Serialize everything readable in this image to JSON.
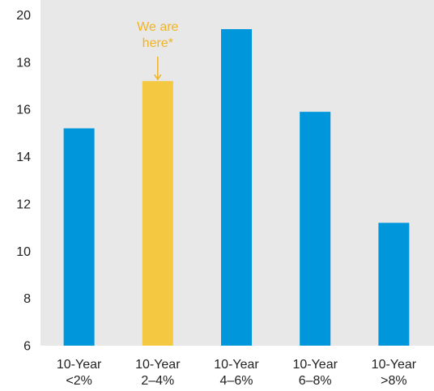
{
  "chart_data": {
    "type": "bar",
    "categories": [
      [
        "10-Year",
        "<2%"
      ],
      [
        "10-Year",
        "2–4%"
      ],
      [
        "10-Year",
        "4–6%"
      ],
      [
        "10-Year",
        "6–8%"
      ],
      [
        "10-Year",
        ">8%"
      ]
    ],
    "values": [
      15.2,
      17.2,
      19.4,
      15.9,
      11.2
    ],
    "highlight_index": 1,
    "ylim": [
      6,
      20
    ],
    "yticks": [
      6,
      8,
      10,
      12,
      14,
      16,
      18,
      20
    ],
    "title": "",
    "xlabel": "",
    "ylabel": "",
    "grid": false,
    "annotation": {
      "lines": [
        "We are",
        "here*"
      ],
      "target_index": 1
    },
    "colors": {
      "bar": "#0096dc",
      "highlight": "#f5c842",
      "annotation": "#f0b323",
      "plot_background": "#e8e8e8"
    }
  }
}
